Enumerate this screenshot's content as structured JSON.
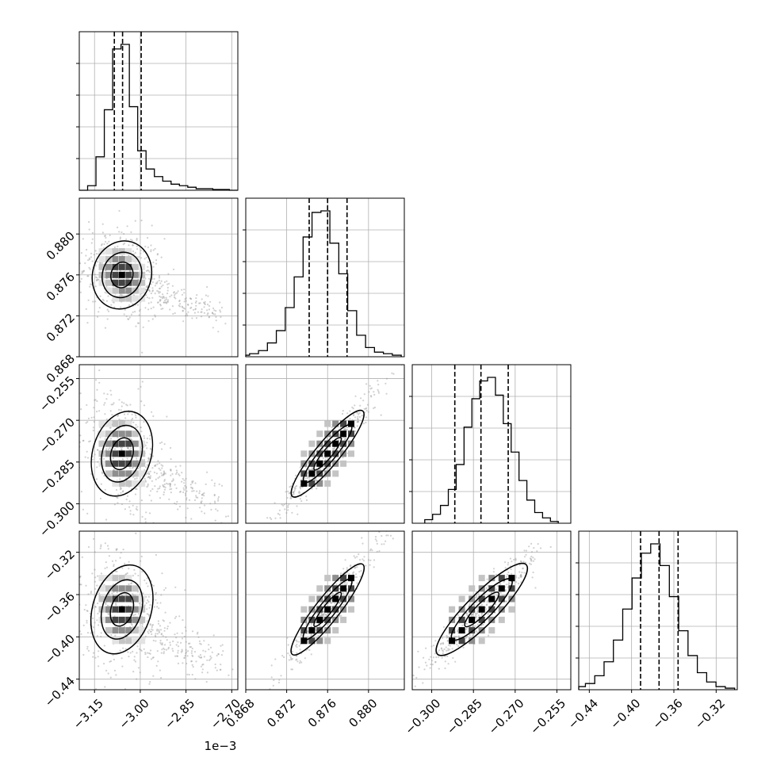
{
  "chart_data": {
    "type": "corner",
    "grid": true,
    "quantiles": [
      0.16,
      0.5,
      0.84
    ],
    "parameters": [
      {
        "range": [
          -3.2,
          -2.68
        ],
        "ticks": [
          -3.15,
          -3.0,
          -2.85,
          -2.7
        ],
        "tick_labels": [
          "−3.15",
          "−3.00",
          "−2.85",
          "−2.70"
        ],
        "offset_text": "1e−3",
        "quantile_values": [
          -3.085,
          -3.058,
          -2.997
        ],
        "hist_counts": [
          0,
          3,
          22,
          53,
          93,
          96,
          55,
          26,
          14,
          9,
          6,
          4,
          3,
          2,
          1,
          1,
          0.5,
          0.5,
          0
        ],
        "hist_edges": [
          -3.2,
          -2.68
        ]
      },
      {
        "range": [
          0.868,
          0.8835
        ],
        "ticks": [
          0.868,
          0.872,
          0.876,
          0.88
        ],
        "tick_labels": [
          "0.868",
          "0.872",
          "0.876",
          "0.880"
        ],
        "quantile_values": [
          0.8742,
          0.876,
          0.8779
        ],
        "hist_counts": [
          1,
          2,
          4,
          9,
          17,
          32,
          52,
          78,
          94,
          95,
          74,
          54,
          30,
          14,
          6,
          3,
          2,
          1
        ],
        "hist_edges": [
          0.8675,
          0.8832
        ]
      },
      {
        "range": [
          -0.307,
          -0.25
        ],
        "ticks": [
          -0.3,
          -0.285,
          -0.27,
          -0.255
        ],
        "tick_labels": [
          "−0.300",
          "−0.285",
          "−0.270",
          "−0.255"
        ],
        "quantile_values": [
          -0.2917,
          -0.2823,
          -0.2725
        ],
        "hist_counts": [
          2,
          5,
          10,
          19,
          33,
          54,
          70,
          80,
          82,
          72,
          56,
          40,
          24,
          13,
          6,
          3,
          1
        ],
        "hist_edges": [
          -0.3025,
          -0.2545
        ]
      },
      {
        "range": [
          -0.45,
          -0.3
        ],
        "ticks": [
          -0.44,
          -0.4,
          -0.36,
          -0.32
        ],
        "tick_labels": [
          "−0.44",
          "−0.40",
          "−0.36",
          "−0.32"
        ],
        "quantile_values": [
          -0.3915,
          -0.374,
          -0.356
        ],
        "hist_counts": [
          2,
          4,
          9,
          18,
          32,
          52,
          72,
          88,
          94,
          80,
          60,
          38,
          22,
          11,
          5,
          2,
          1
        ],
        "hist_edges": [
          -0.4525,
          -0.3025
        ]
      }
    ],
    "pairs": [
      {
        "x_param": 0,
        "y_param": 1,
        "mean": [
          -3.06,
          0.876
        ],
        "std": [
          0.04,
          0.0014
        ],
        "corr": -0.25,
        "skew_tail": true
      },
      {
        "x_param": 0,
        "y_param": 2,
        "mean": [
          -3.06,
          -0.282
        ],
        "std": [
          0.04,
          0.0065
        ],
        "corr": -0.2,
        "skew_tail": true
      },
      {
        "x_param": 1,
        "y_param": 2,
        "mean": [
          0.876,
          -0.282
        ],
        "std": [
          0.0014,
          0.0065
        ],
        "corr": 0.96,
        "skew_tail": false
      },
      {
        "x_param": 0,
        "y_param": 3,
        "mean": [
          -3.06,
          -0.374
        ],
        "std": [
          0.04,
          0.018
        ],
        "corr": -0.2,
        "skew_tail": true
      },
      {
        "x_param": 1,
        "y_param": 3,
        "mean": [
          0.876,
          -0.374
        ],
        "std": [
          0.0014,
          0.018
        ],
        "corr": 0.96,
        "skew_tail": false
      },
      {
        "x_param": 2,
        "y_param": 3,
        "mean": [
          -0.282,
          -0.374
        ],
        "std": [
          0.0065,
          0.018
        ],
        "corr": 0.96,
        "skew_tail": false
      }
    ]
  }
}
